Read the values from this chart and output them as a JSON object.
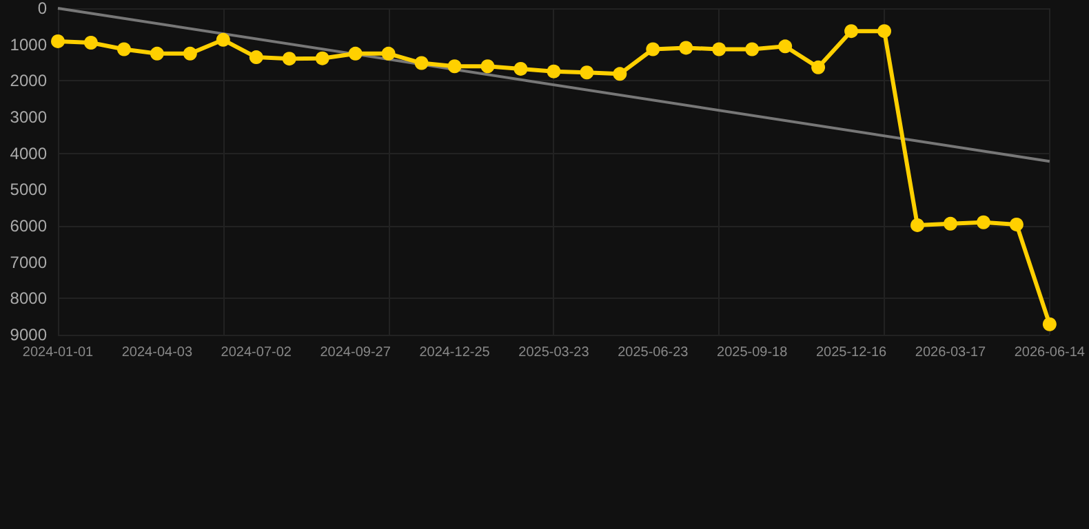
{
  "chart_data": {
    "type": "line",
    "categories": [
      "2024-01-01",
      null,
      null,
      "2024-04-03",
      null,
      null,
      "2024-07-02",
      null,
      null,
      "2024-09-27",
      null,
      null,
      "2024-12-25",
      null,
      null,
      "2025-03-23",
      null,
      null,
      "2025-06-23",
      null,
      null,
      "2025-09-18",
      null,
      null,
      "2025-12-16",
      null,
      null,
      "2026-03-17",
      null,
      null,
      "2026-06-14"
    ],
    "series": [
      {
        "color": "#ffd000",
        "marker": "circle",
        "values": [
          910,
          950,
          1130,
          1250,
          1250,
          870,
          1350,
          1390,
          1380,
          1250,
          1250,
          1510,
          1600,
          1600,
          1670,
          1740,
          1770,
          1810,
          1130,
          1090,
          1130,
          1130,
          1050,
          1630,
          630,
          630,
          5980,
          5940,
          5900,
          5960,
          8710
        ]
      },
      {
        "color": "#777777",
        "marker": "none",
        "values": [
          0,
          null,
          null,
          null,
          null,
          null,
          null,
          null,
          null,
          null,
          null,
          null,
          null,
          null,
          null,
          null,
          null,
          null,
          null,
          null,
          null,
          null,
          null,
          null,
          null,
          null,
          null,
          null,
          null,
          null,
          4220
        ]
      }
    ],
    "ylim": [
      9000,
      0
    ],
    "yticks": [
      0,
      1000,
      2000,
      3000,
      4000,
      5000,
      6000,
      7000,
      8000,
      9000
    ],
    "grid": true
  }
}
